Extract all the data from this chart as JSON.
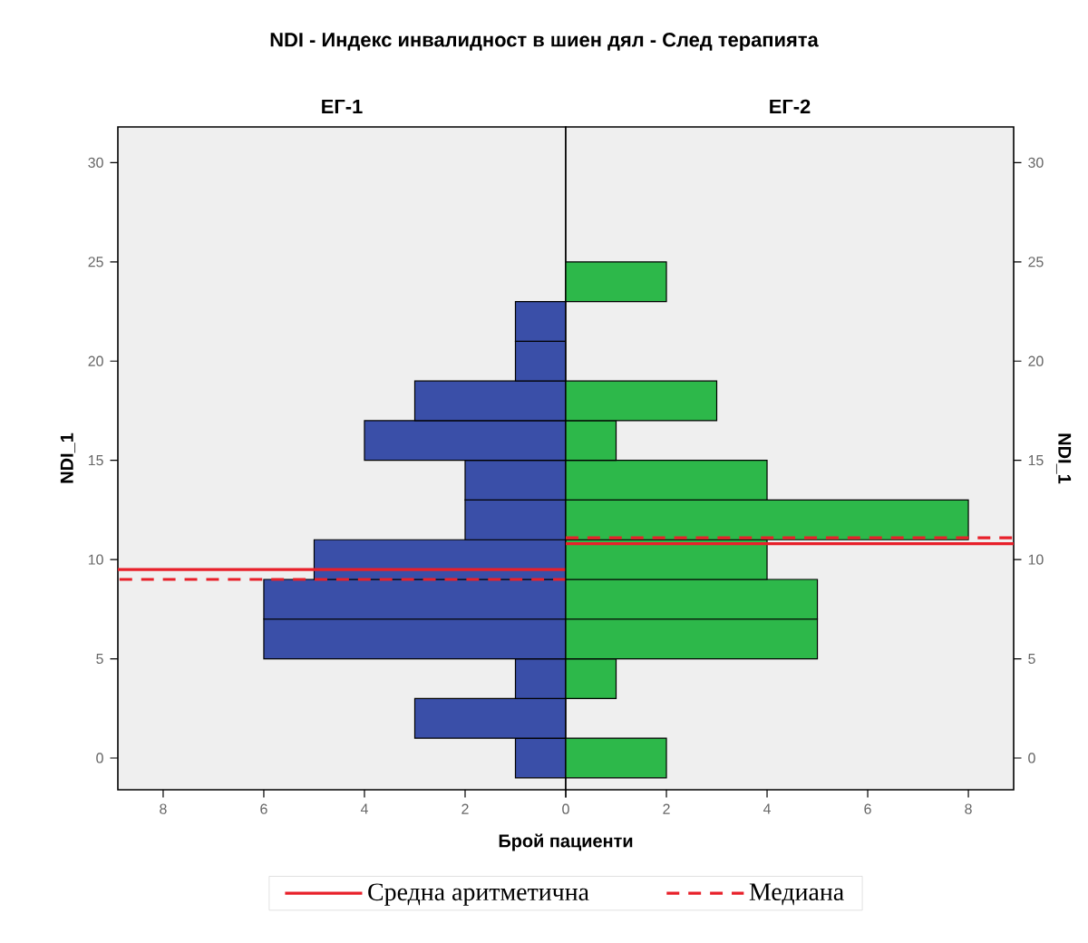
{
  "chart_data": [
    {
      "type": "histogram",
      "orientation": "horizontal",
      "title": "NDI  -  Индекс инвалидност в шиен дял  -  След терапията",
      "subtitle": "ЕГ-1",
      "xlabel": "Брой пациенти",
      "ylabel": "NDI_1",
      "bins": [
        -1,
        1,
        3,
        5,
        7,
        9,
        11,
        13,
        15,
        17,
        19,
        21,
        23,
        25
      ],
      "values": [
        1,
        3,
        1,
        6,
        6,
        5,
        2,
        2,
        4,
        3,
        1,
        1,
        0
      ],
      "color": "#3a4fa8",
      "xlim": [
        8.9,
        0
      ],
      "xticks": [
        8,
        6,
        4,
        2,
        0
      ],
      "ylim": [
        -1.6,
        31.8
      ],
      "yticks": [
        0,
        5,
        10,
        15,
        20,
        25,
        30
      ],
      "ref_lines": [
        {
          "axis": "y",
          "value": 9.5,
          "label": "Средна аритметична",
          "color": "#e8202a",
          "line_style": "solid"
        },
        {
          "axis": "y",
          "value": 9.0,
          "label": "Медиана",
          "color": "#e8202a",
          "line_style": "dashed"
        }
      ],
      "legend": "bottom"
    },
    {
      "type": "histogram",
      "orientation": "horizontal",
      "subtitle": "ЕГ-2",
      "ylabel": "NDI_1",
      "bins": [
        -1,
        1,
        3,
        5,
        7,
        9,
        11,
        13,
        15,
        17,
        19,
        21,
        23,
        25
      ],
      "values": [
        2,
        0,
        1,
        5,
        5,
        4,
        8,
        4,
        1,
        3,
        0,
        0,
        2
      ],
      "color": "#2db84a",
      "xlim": [
        0,
        8.9
      ],
      "xticks": [
        {
          "value": 0,
          "label": null
        },
        2,
        4,
        6,
        8
      ],
      "ylim": [
        -1.6,
        31.8
      ],
      "yticks": [
        0,
        5,
        10,
        15,
        20,
        25,
        30
      ],
      "ref_lines": [
        {
          "axis": "y",
          "value": 10.8,
          "color": "#e8202a",
          "line_style": "solid"
        },
        {
          "axis": "y",
          "value": 11.1,
          "color": "#e8202a",
          "line_style": "dashed"
        }
      ]
    }
  ]
}
